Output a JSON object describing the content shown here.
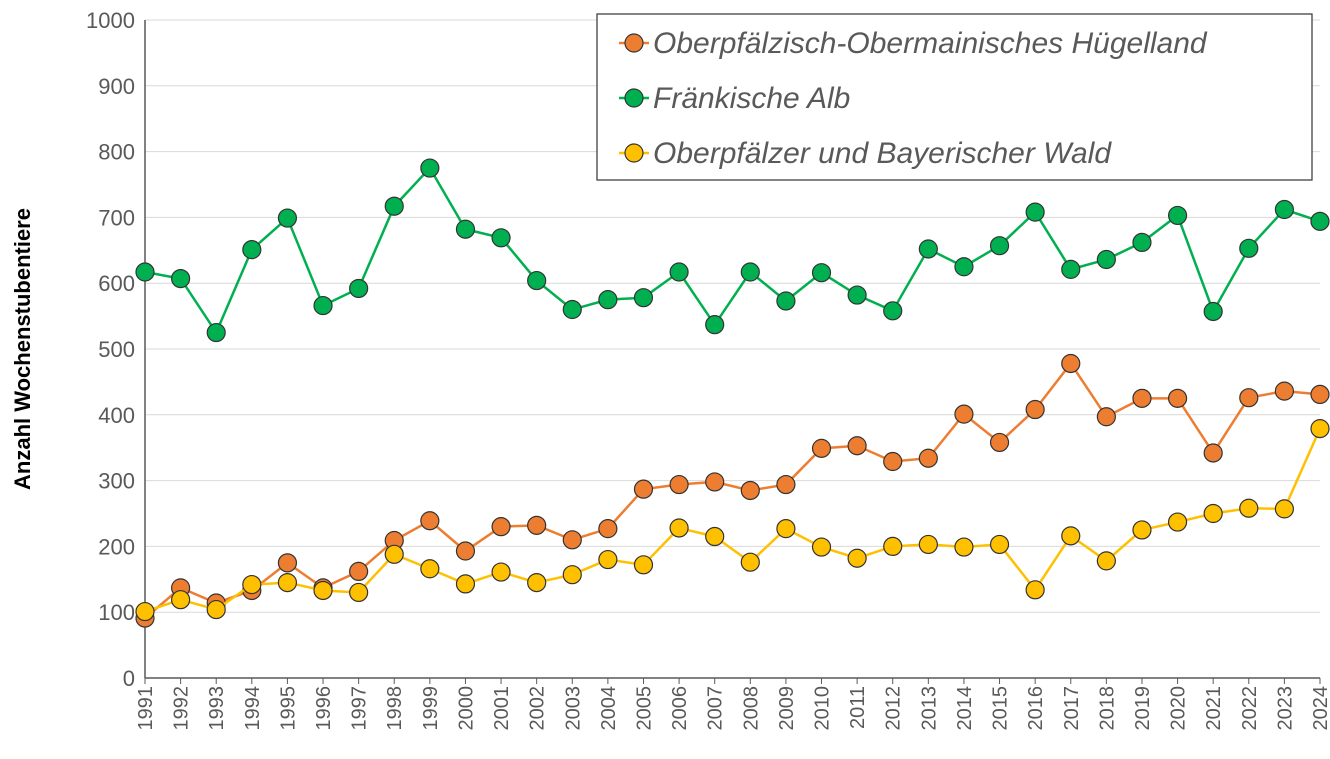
{
  "chart_data": {
    "type": "line",
    "y_label": "Anzahl Wochenstubentiere",
    "categories": [
      "1991",
      "1992",
      "1993",
      "1994",
      "1995",
      "1996",
      "1997",
      "1998",
      "1999",
      "2000",
      "2001",
      "2002",
      "2003",
      "2004",
      "2005",
      "2006",
      "2007",
      "2008",
      "2009",
      "2010",
      "2011",
      "2012",
      "2013",
      "2014",
      "2015",
      "2016",
      "2017",
      "2018",
      "2019",
      "2020",
      "2021",
      "2022",
      "2023",
      "2024"
    ],
    "series": [
      {
        "name": "Oberpfälzisch-Obermainisches Hügelland",
        "color": "#ED7D31",
        "values": [
          91,
          137,
          114,
          133,
          175,
          137,
          162,
          209,
          239,
          193,
          230,
          232,
          210,
          227,
          287,
          294,
          298,
          285,
          294,
          349,
          353,
          329,
          334,
          401,
          358,
          408,
          478,
          397,
          425,
          425,
          342,
          426,
          436,
          431
        ]
      },
      {
        "name": "Fränkische Alb",
        "color": "#00B050",
        "values": [
          617,
          607,
          525,
          651,
          699,
          566,
          592,
          717,
          775,
          682,
          669,
          604,
          560,
          575,
          578,
          617,
          537,
          617,
          573,
          616,
          582,
          558,
          652,
          625,
          657,
          708,
          621,
          636,
          662,
          703,
          557,
          653,
          712,
          694
        ]
      },
      {
        "name": "Oberpfälzer und Bayerischer Wald",
        "color": "#FFC000",
        "values": [
          101,
          119,
          104,
          142,
          145,
          133,
          130,
          188,
          166,
          143,
          161,
          145,
          157,
          180,
          172,
          228,
          215,
          176,
          227,
          199,
          182,
          200,
          203,
          199,
          203,
          134,
          216,
          178,
          225,
          237,
          250,
          258,
          257,
          379
        ]
      }
    ],
    "ylim": [
      0,
      1000
    ],
    "yticks": [
      0,
      100,
      200,
      300,
      400,
      500,
      600,
      700,
      800,
      900,
      1000
    ],
    "grid": true,
    "legend": "top-right"
  }
}
